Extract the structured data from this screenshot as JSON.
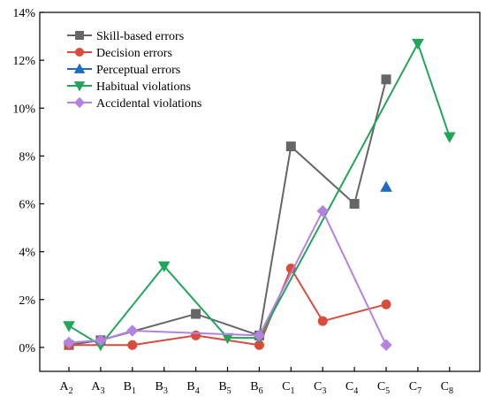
{
  "chart_data": {
    "type": "line",
    "title": "",
    "xlabel": "",
    "ylabel": "",
    "ylim": [
      -1,
      14
    ],
    "yticks": [
      0,
      2,
      4,
      6,
      8,
      10,
      12,
      14
    ],
    "ytick_labels": [
      "0%",
      "2%",
      "4%",
      "6%",
      "8%",
      "10%",
      "12%",
      "14%"
    ],
    "categories": [
      {
        "base": "A",
        "sub": "2"
      },
      {
        "base": "A",
        "sub": "3"
      },
      {
        "base": "B",
        "sub": "1"
      },
      {
        "base": "B",
        "sub": "3"
      },
      {
        "base": "B",
        "sub": "4"
      },
      {
        "base": "B",
        "sub": "5"
      },
      {
        "base": "B",
        "sub": "6"
      },
      {
        "base": "C",
        "sub": "1"
      },
      {
        "base": "C",
        "sub": "3"
      },
      {
        "base": "C",
        "sub": "4"
      },
      {
        "base": "C",
        "sub": "5"
      },
      {
        "base": "C",
        "sub": "7"
      },
      {
        "base": "C",
        "sub": "8"
      }
    ],
    "legend_position": "top-left",
    "grid": false,
    "series": [
      {
        "name": "Skill-based errors",
        "color": "#666666",
        "marker": "square",
        "values": [
          0.1,
          0.3,
          null,
          null,
          1.4,
          null,
          0.5,
          8.4,
          null,
          6.0,
          11.2,
          null,
          null
        ]
      },
      {
        "name": "Decision errors",
        "color": "#d94c3d",
        "marker": "circle",
        "values": [
          0.1,
          null,
          0.1,
          null,
          0.5,
          null,
          0.1,
          3.3,
          1.1,
          null,
          1.8,
          null,
          null
        ]
      },
      {
        "name": "Perceptual errors",
        "color": "#1f6bc2",
        "marker": "triangle-up",
        "values": [
          null,
          null,
          null,
          null,
          null,
          null,
          null,
          null,
          null,
          null,
          6.7,
          null,
          null
        ]
      },
      {
        "name": "Habitual violations",
        "color": "#22a55b",
        "marker": "triangle-down",
        "values": [
          0.9,
          0.1,
          null,
          3.4,
          null,
          0.4,
          0.4,
          null,
          null,
          null,
          null,
          12.7,
          8.8
        ]
      },
      {
        "name": "Accidental violations",
        "color": "#b582e0",
        "marker": "diamond",
        "values": [
          0.2,
          0.3,
          0.7,
          null,
          null,
          null,
          0.5,
          null,
          5.7,
          null,
          0.1,
          null,
          null
        ]
      }
    ]
  }
}
